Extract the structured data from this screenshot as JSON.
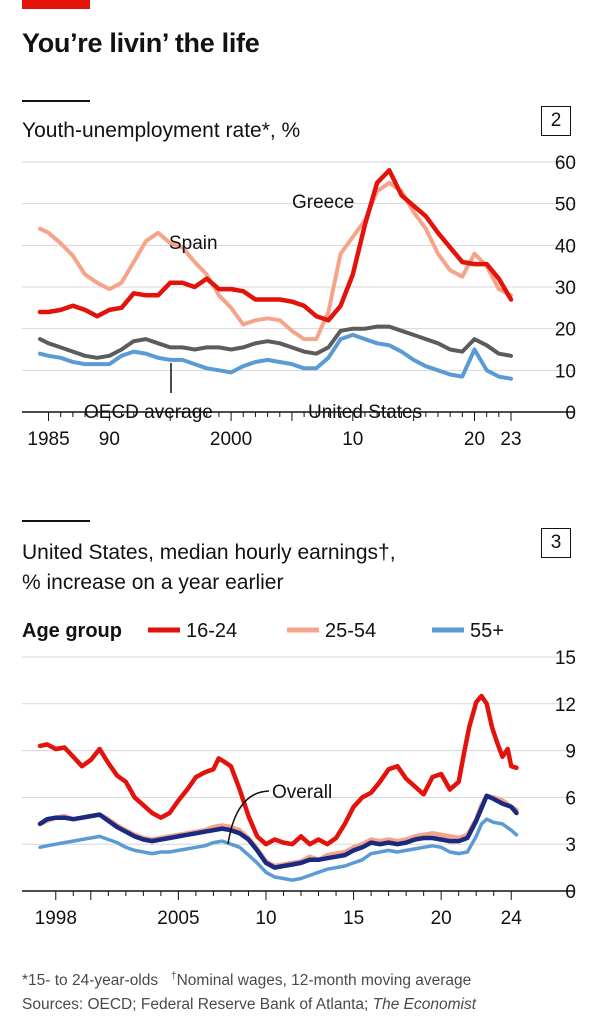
{
  "title": "You’re livin’ the life",
  "charts": [
    {
      "number": "2",
      "title": "Youth-unemployment rate*, %"
    },
    {
      "number": "3",
      "title_line1": "United States, median hourly earnings†,",
      "title_line2": "% increase on a year earlier"
    }
  ],
  "colors": {
    "red_tag": "#e3120b",
    "greece": "#e3120b",
    "spain": "#f5a48a",
    "oecd": "#5c5c5c",
    "united_states": "#5b9bd5",
    "age_16_24": "#e3120b",
    "age_25_54": "#f5a48a",
    "age_55_plus": "#5b9bd5",
    "overall": "#1a2a80"
  },
  "chart_data": [
    {
      "type": "line",
      "title": "Youth-unemployment rate*, %",
      "ylim": [
        0,
        60
      ],
      "yticks": [
        0,
        10,
        20,
        30,
        40,
        50,
        60
      ],
      "xlim": [
        1984.3,
        2023
      ],
      "xtick_labels": [
        {
          "x": 1985,
          "label": "1985"
        },
        {
          "x": 1990,
          "label": "90"
        },
        {
          "x": 2000,
          "label": "2000"
        },
        {
          "x": 2010,
          "label": "10"
        },
        {
          "x": 2020,
          "label": "20"
        },
        {
          "x": 2023,
          "label": "23"
        }
      ],
      "grid": true,
      "series": [
        {
          "name": "Greece",
          "color": "#e3120b",
          "x": [
            1984.3,
            1985,
            1986,
            1987,
            1988,
            1989,
            1990,
            1991,
            1992,
            1993,
            1994,
            1995,
            1996,
            1997,
            1998,
            1999,
            2000,
            2001,
            2002,
            2003,
            2004,
            2005,
            2006,
            2007,
            2008,
            2009,
            2010,
            2011,
            2012,
            2013,
            2014,
            2015,
            2016,
            2017,
            2018,
            2019,
            2020,
            2021,
            2022,
            2023
          ],
          "values": [
            24,
            24,
            24.5,
            25.5,
            24.5,
            23,
            24.5,
            25,
            28.5,
            28,
            28,
            31,
            31,
            30,
            32,
            29.5,
            29.5,
            29,
            27,
            27,
            27,
            26.5,
            25.5,
            23,
            22,
            25.5,
            33,
            45,
            55,
            58,
            52,
            49.5,
            47,
            43,
            39.5,
            36,
            35.5,
            35.5,
            32,
            27
          ]
        },
        {
          "name": "Spain",
          "color": "#f5a48a",
          "x": [
            1984.3,
            1985,
            1986,
            1987,
            1988,
            1989,
            1990,
            1991,
            1992,
            1993,
            1994,
            1995,
            1996,
            1997,
            1998,
            1999,
            2000,
            2001,
            2002,
            2003,
            2004,
            2005,
            2006,
            2007,
            2008,
            2009,
            2010,
            2011,
            2012,
            2013,
            2014,
            2015,
            2016,
            2017,
            2018,
            2019,
            2020,
            2021,
            2022,
            2023
          ],
          "values": [
            44,
            43,
            40.5,
            37.5,
            33,
            31,
            29.5,
            31,
            36,
            41,
            43,
            40.5,
            39.5,
            36,
            33,
            28,
            25,
            21,
            22,
            22.5,
            22,
            19.5,
            17.5,
            17.5,
            24,
            38,
            42,
            46,
            53,
            55,
            53,
            48,
            44,
            38,
            34,
            32.5,
            38,
            35,
            29.5,
            28
          ]
        },
        {
          "name": "OECD average",
          "color": "#5c5c5c",
          "x": [
            1984.3,
            1985,
            1986,
            1987,
            1988,
            1989,
            1990,
            1991,
            1992,
            1993,
            1994,
            1995,
            1996,
            1997,
            1998,
            1999,
            2000,
            2001,
            2002,
            2003,
            2004,
            2005,
            2006,
            2007,
            2008,
            2009,
            2010,
            2011,
            2012,
            2013,
            2014,
            2015,
            2016,
            2017,
            2018,
            2019,
            2020,
            2021,
            2022,
            2023
          ],
          "values": [
            17.5,
            16.5,
            15.5,
            14.5,
            13.5,
            13,
            13.5,
            15,
            17,
            17.5,
            16.5,
            15.5,
            15.5,
            15,
            15.5,
            15.5,
            15,
            15.5,
            16.5,
            17,
            16.5,
            15.5,
            14.5,
            14,
            15.5,
            19.5,
            20,
            20,
            20.5,
            20.5,
            19.5,
            18.5,
            17.5,
            16.5,
            15,
            14.5,
            17.5,
            16,
            14,
            13.5
          ]
        },
        {
          "name": "United States",
          "color": "#5b9bd5",
          "x": [
            1984.3,
            1985,
            1986,
            1987,
            1988,
            1989,
            1990,
            1991,
            1992,
            1993,
            1994,
            1995,
            1996,
            1997,
            1998,
            1999,
            2000,
            2001,
            2002,
            2003,
            2004,
            2005,
            2006,
            2007,
            2008,
            2009,
            2010,
            2011,
            2012,
            2013,
            2014,
            2015,
            2016,
            2017,
            2018,
            2019,
            2020,
            2021,
            2022,
            2023
          ],
          "values": [
            14,
            13.5,
            13,
            12,
            11.5,
            11.5,
            11.5,
            13.5,
            14.5,
            14,
            13,
            12.5,
            12.5,
            11.5,
            10.5,
            10,
            9.5,
            11,
            12,
            12.5,
            12,
            11.5,
            10.5,
            10.5,
            13,
            17.5,
            18.5,
            17.5,
            16.5,
            16,
            14.5,
            12.5,
            11,
            10,
            9,
            8.5,
            15,
            10,
            8.5,
            8
          ]
        }
      ],
      "labels": [
        {
          "text": "Greece",
          "color": "#121212"
        },
        {
          "text": "Spain",
          "color": "#121212"
        },
        {
          "text": "OECD average",
          "color": "#121212"
        },
        {
          "text": "United States",
          "color": "#121212"
        }
      ]
    },
    {
      "type": "line",
      "title": "United States, median hourly earnings†, % increase on a year earlier",
      "legend_title": "Age group",
      "legend_placement": "top",
      "ylim": [
        0,
        15
      ],
      "yticks": [
        0,
        3,
        6,
        9,
        12,
        15
      ],
      "xlim": [
        1997.1,
        2024.5
      ],
      "xtick_labels": [
        {
          "x": 1998,
          "label": "1998"
        },
        {
          "x": 2005,
          "label": "2005"
        },
        {
          "x": 2010,
          "label": "10"
        },
        {
          "x": 2015,
          "label": "15"
        },
        {
          "x": 2020,
          "label": "20"
        },
        {
          "x": 2024,
          "label": "24"
        }
      ],
      "grid": true,
      "series": [
        {
          "name": "16-24",
          "color": "#e3120b",
          "x": [
            1997.1,
            1997.5,
            1998,
            1998.5,
            1999,
            1999.5,
            2000,
            2000.5,
            2001,
            2001.5,
            2002,
            2002.5,
            2003,
            2003.5,
            2004,
            2004.5,
            2005,
            2005.5,
            2006,
            2006.5,
            2007,
            2007.3,
            2007.6,
            2008,
            2008.5,
            2009,
            2009.5,
            2010,
            2010.5,
            2011,
            2011.5,
            2012,
            2012.5,
            2013,
            2013.5,
            2014,
            2014.5,
            2015,
            2015.5,
            2016,
            2016.5,
            2017,
            2017.5,
            2018,
            2018.5,
            2019,
            2019.5,
            2020,
            2020.5,
            2021,
            2021.3,
            2021.6,
            2022,
            2022.3,
            2022.6,
            2022.9,
            2023.2,
            2023.5,
            2023.8,
            2024,
            2024.3
          ],
          "values": [
            9.3,
            9.4,
            9.1,
            9.2,
            8.6,
            8.0,
            8.4,
            9.1,
            8.2,
            7.4,
            7.0,
            6.0,
            5.5,
            5.0,
            4.7,
            5.0,
            5.8,
            6.5,
            7.3,
            7.6,
            7.8,
            8.5,
            8.3,
            8.0,
            6.5,
            4.8,
            3.5,
            3.0,
            3.3,
            3.1,
            3.0,
            3.5,
            3.0,
            3.3,
            3.0,
            3.4,
            4.3,
            5.4,
            6.0,
            6.3,
            7.0,
            7.8,
            8.0,
            7.2,
            6.7,
            6.2,
            7.3,
            7.5,
            6.5,
            7.0,
            8.8,
            10.5,
            12.1,
            12.5,
            12.0,
            10.5,
            9.5,
            8.6,
            9.1,
            8.0,
            7.9
          ]
        },
        {
          "name": "25-54",
          "color": "#f5a48a",
          "x": [
            1997.1,
            1997.5,
            1998,
            1998.5,
            1999,
            1999.5,
            2000,
            2000.5,
            2001,
            2001.5,
            2002,
            2002.5,
            2003,
            2003.5,
            2004,
            2004.5,
            2005,
            2005.5,
            2006,
            2006.5,
            2007,
            2007.5,
            2008,
            2008.5,
            2009,
            2009.5,
            2010,
            2010.5,
            2011,
            2011.5,
            2012,
            2012.5,
            2013,
            2013.5,
            2014,
            2014.5,
            2015,
            2015.5,
            2016,
            2016.5,
            2017,
            2017.5,
            2018,
            2018.5,
            2019,
            2019.5,
            2020,
            2020.5,
            2021,
            2021.5,
            2022,
            2022.3,
            2022.6,
            2023,
            2023.5,
            2024,
            2024.3
          ],
          "values": [
            4.3,
            4.5,
            4.7,
            4.8,
            4.6,
            4.7,
            4.8,
            4.9,
            4.6,
            4.2,
            3.9,
            3.6,
            3.4,
            3.3,
            3.4,
            3.5,
            3.6,
            3.7,
            3.8,
            3.9,
            4.1,
            4.2,
            4.1,
            3.9,
            3.4,
            2.7,
            1.9,
            1.6,
            1.7,
            1.8,
            1.9,
            2.2,
            2.0,
            2.3,
            2.4,
            2.5,
            2.8,
            3.0,
            3.3,
            3.2,
            3.3,
            3.2,
            3.3,
            3.5,
            3.6,
            3.7,
            3.6,
            3.5,
            3.4,
            3.6,
            4.6,
            5.5,
            6.1,
            6.0,
            5.8,
            5.4,
            5.2
          ]
        },
        {
          "name": "55+",
          "color": "#5b9bd5",
          "x": [
            1997.1,
            1997.5,
            1998,
            1998.5,
            1999,
            1999.5,
            2000,
            2000.5,
            2001,
            2001.5,
            2002,
            2002.5,
            2003,
            2003.5,
            2004,
            2004.5,
            2005,
            2005.5,
            2006,
            2006.5,
            2007,
            2007.5,
            2008,
            2008.5,
            2009,
            2009.5,
            2010,
            2010.5,
            2011,
            2011.5,
            2012,
            2012.5,
            2013,
            2013.5,
            2014,
            2014.5,
            2015,
            2015.5,
            2016,
            2016.5,
            2017,
            2017.5,
            2018,
            2018.5,
            2019,
            2019.5,
            2020,
            2020.5,
            2021,
            2021.5,
            2022,
            2022.3,
            2022.6,
            2023,
            2023.5,
            2024,
            2024.3
          ],
          "values": [
            2.8,
            2.9,
            3.0,
            3.1,
            3.2,
            3.3,
            3.4,
            3.5,
            3.3,
            3.1,
            2.8,
            2.6,
            2.5,
            2.4,
            2.5,
            2.5,
            2.6,
            2.7,
            2.8,
            2.9,
            3.1,
            3.2,
            3.0,
            2.8,
            2.3,
            1.8,
            1.2,
            0.9,
            0.8,
            0.7,
            0.8,
            1.0,
            1.2,
            1.4,
            1.5,
            1.6,
            1.8,
            2.0,
            2.4,
            2.5,
            2.6,
            2.5,
            2.6,
            2.7,
            2.8,
            2.9,
            2.8,
            2.5,
            2.4,
            2.5,
            3.5,
            4.3,
            4.6,
            4.4,
            4.3,
            3.9,
            3.6
          ]
        },
        {
          "name": "Overall",
          "color": "#1a2a80",
          "x": [
            1997.1,
            1997.5,
            1998,
            1998.5,
            1999,
            1999.5,
            2000,
            2000.5,
            2001,
            2001.5,
            2002,
            2002.5,
            2003,
            2003.5,
            2004,
            2004.5,
            2005,
            2005.5,
            2006,
            2006.5,
            2007,
            2007.5,
            2008,
            2008.5,
            2009,
            2009.5,
            2010,
            2010.5,
            2011,
            2011.5,
            2012,
            2012.5,
            2013,
            2013.5,
            2014,
            2014.5,
            2015,
            2015.5,
            2016,
            2016.5,
            2017,
            2017.5,
            2018,
            2018.5,
            2019,
            2019.5,
            2020,
            2020.5,
            2021,
            2021.5,
            2022,
            2022.3,
            2022.6,
            2023,
            2023.5,
            2024,
            2024.3
          ],
          "values": [
            4.3,
            4.6,
            4.7,
            4.7,
            4.6,
            4.7,
            4.8,
            4.9,
            4.5,
            4.1,
            3.8,
            3.5,
            3.3,
            3.2,
            3.3,
            3.4,
            3.5,
            3.6,
            3.7,
            3.8,
            3.9,
            4.0,
            3.9,
            3.7,
            3.3,
            2.6,
            1.8,
            1.5,
            1.6,
            1.7,
            1.8,
            2.0,
            2.0,
            2.1,
            2.2,
            2.3,
            2.6,
            2.8,
            3.1,
            3.0,
            3.1,
            3.0,
            3.1,
            3.3,
            3.4,
            3.4,
            3.3,
            3.2,
            3.2,
            3.4,
            4.5,
            5.3,
            6.1,
            5.9,
            5.6,
            5.4,
            5.0
          ]
        }
      ],
      "labels": [
        {
          "text": "Overall",
          "color": "#121212"
        }
      ]
    }
  ],
  "footnote": {
    "note1": "*15- to 24-year-olds",
    "note2_mark": "†",
    "note2": "Nominal wages, 12-month moving average",
    "sources_prefix": "Sources: OECD; Federal Reserve Bank of Atlanta; ",
    "sources_italic": "The Economist"
  }
}
